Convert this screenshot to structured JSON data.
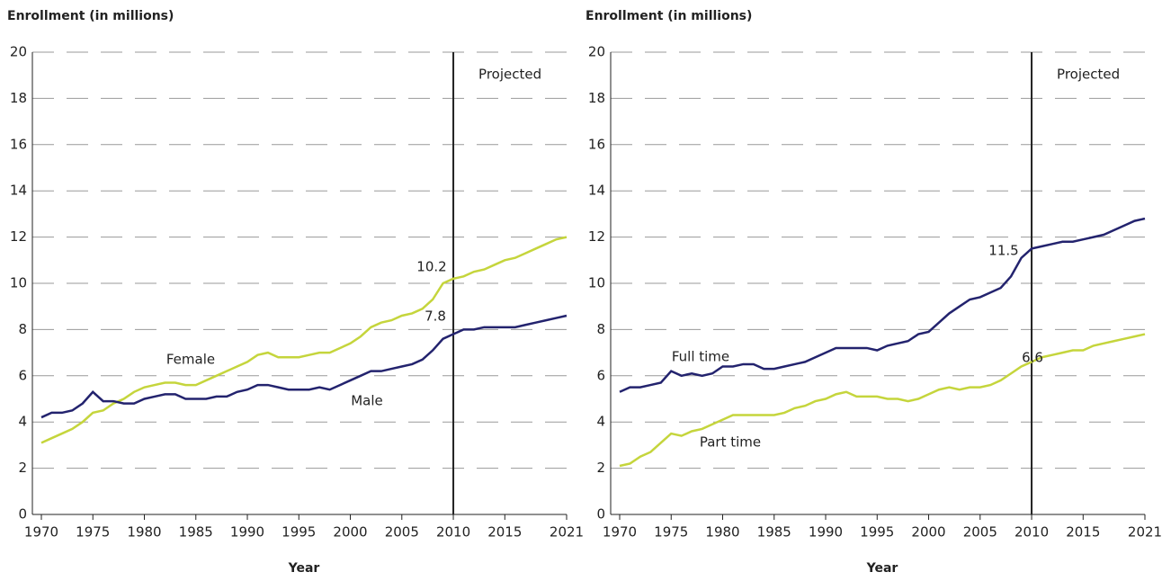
{
  "chart_data": [
    {
      "type": "line",
      "y_axis_title": "Enrollment (in millions)",
      "x_axis_title": "Year",
      "x": [
        1970,
        1971,
        1972,
        1973,
        1974,
        1975,
        1976,
        1977,
        1978,
        1979,
        1980,
        1981,
        1982,
        1983,
        1984,
        1985,
        1986,
        1987,
        1988,
        1989,
        1990,
        1991,
        1992,
        1993,
        1994,
        1995,
        1996,
        1997,
        1998,
        1999,
        2000,
        2001,
        2002,
        2003,
        2004,
        2005,
        2006,
        2007,
        2008,
        2009,
        2010,
        2011,
        2012,
        2013,
        2014,
        2015,
        2016,
        2017,
        2018,
        2019,
        2020,
        2021
      ],
      "series": [
        {
          "name": "Female",
          "color": "#c5d53c",
          "values": [
            3.1,
            3.3,
            3.5,
            3.7,
            4.0,
            4.4,
            4.5,
            4.8,
            5.0,
            5.3,
            5.5,
            5.6,
            5.7,
            5.7,
            5.6,
            5.6,
            5.8,
            6.0,
            6.2,
            6.4,
            6.6,
            6.9,
            7.0,
            6.8,
            6.8,
            6.8,
            6.9,
            7.0,
            7.0,
            7.2,
            7.4,
            7.7,
            8.1,
            8.3,
            8.4,
            8.6,
            8.7,
            8.9,
            9.3,
            10.0,
            10.2,
            10.3,
            10.5,
            10.6,
            10.8,
            11.0,
            11.1,
            11.3,
            11.5,
            11.7,
            11.9,
            12.0
          ]
        },
        {
          "name": "Male",
          "color": "#23236e",
          "values": [
            4.2,
            4.4,
            4.4,
            4.5,
            4.8,
            5.3,
            4.9,
            4.9,
            4.8,
            4.8,
            5.0,
            5.1,
            5.2,
            5.2,
            5.0,
            5.0,
            5.0,
            5.1,
            5.1,
            5.3,
            5.4,
            5.6,
            5.6,
            5.5,
            5.4,
            5.4,
            5.4,
            5.5,
            5.4,
            5.6,
            5.8,
            6.0,
            6.2,
            6.2,
            6.3,
            6.4,
            6.5,
            6.7,
            7.1,
            7.6,
            7.8,
            8.0,
            8.0,
            8.1,
            8.1,
            8.1,
            8.1,
            8.2,
            8.3,
            8.4,
            8.5,
            8.6
          ]
        }
      ],
      "xlim": [
        1970,
        2021
      ],
      "xticks": [
        1970,
        1975,
        1980,
        1985,
        1990,
        1995,
        2000,
        2005,
        2010,
        2015,
        2021
      ],
      "ylim": [
        0,
        20
      ],
      "yticks": [
        0,
        2,
        4,
        6,
        8,
        10,
        12,
        14,
        16,
        18,
        20
      ],
      "grid": true,
      "projection_x": 2010,
      "projection_label": "Projected"
    },
    {
      "type": "line",
      "y_axis_title": "Enrollment (in millions)",
      "x_axis_title": "Year",
      "x": [
        1970,
        1971,
        1972,
        1973,
        1974,
        1975,
        1976,
        1977,
        1978,
        1979,
        1980,
        1981,
        1982,
        1983,
        1984,
        1985,
        1986,
        1987,
        1988,
        1989,
        1990,
        1991,
        1992,
        1993,
        1994,
        1995,
        1996,
        1997,
        1998,
        1999,
        2000,
        2001,
        2002,
        2003,
        2004,
        2005,
        2006,
        2007,
        2008,
        2009,
        2010,
        2011,
        2012,
        2013,
        2014,
        2015,
        2016,
        2017,
        2018,
        2019,
        2020,
        2021
      ],
      "series": [
        {
          "name": "Full time",
          "color": "#23236e",
          "values": [
            5.3,
            5.5,
            5.5,
            5.6,
            5.7,
            6.2,
            6.0,
            6.1,
            6.0,
            6.1,
            6.4,
            6.4,
            6.5,
            6.5,
            6.3,
            6.3,
            6.4,
            6.5,
            6.6,
            6.8,
            7.0,
            7.2,
            7.2,
            7.2,
            7.2,
            7.1,
            7.3,
            7.4,
            7.5,
            7.8,
            7.9,
            8.3,
            8.7,
            9.0,
            9.3,
            9.4,
            9.6,
            9.8,
            10.3,
            11.1,
            11.5,
            11.6,
            11.7,
            11.8,
            11.8,
            11.9,
            12.0,
            12.1,
            12.3,
            12.5,
            12.7,
            12.8
          ]
        },
        {
          "name": "Part time",
          "color": "#c5d53c",
          "values": [
            2.1,
            2.2,
            2.5,
            2.7,
            3.1,
            3.5,
            3.4,
            3.6,
            3.7,
            3.9,
            4.1,
            4.3,
            4.3,
            4.3,
            4.3,
            4.3,
            4.4,
            4.6,
            4.7,
            4.9,
            5.0,
            5.2,
            5.3,
            5.1,
            5.1,
            5.1,
            5.0,
            5.0,
            4.9,
            5.0,
            5.2,
            5.4,
            5.5,
            5.4,
            5.5,
            5.5,
            5.6,
            5.8,
            6.1,
            6.4,
            6.6,
            6.8,
            6.9,
            7.0,
            7.1,
            7.1,
            7.3,
            7.4,
            7.5,
            7.6,
            7.7,
            7.8
          ]
        }
      ],
      "xlim": [
        1970,
        2021
      ],
      "xticks": [
        1970,
        1975,
        1980,
        1985,
        1990,
        1995,
        2000,
        2005,
        2010,
        2015,
        2021
      ],
      "ylim": [
        0,
        20
      ],
      "yticks": [
        0,
        2,
        4,
        6,
        8,
        10,
        12,
        14,
        16,
        18,
        20
      ],
      "grid": true,
      "projection_x": 2010,
      "projection_label": "Projected"
    }
  ]
}
